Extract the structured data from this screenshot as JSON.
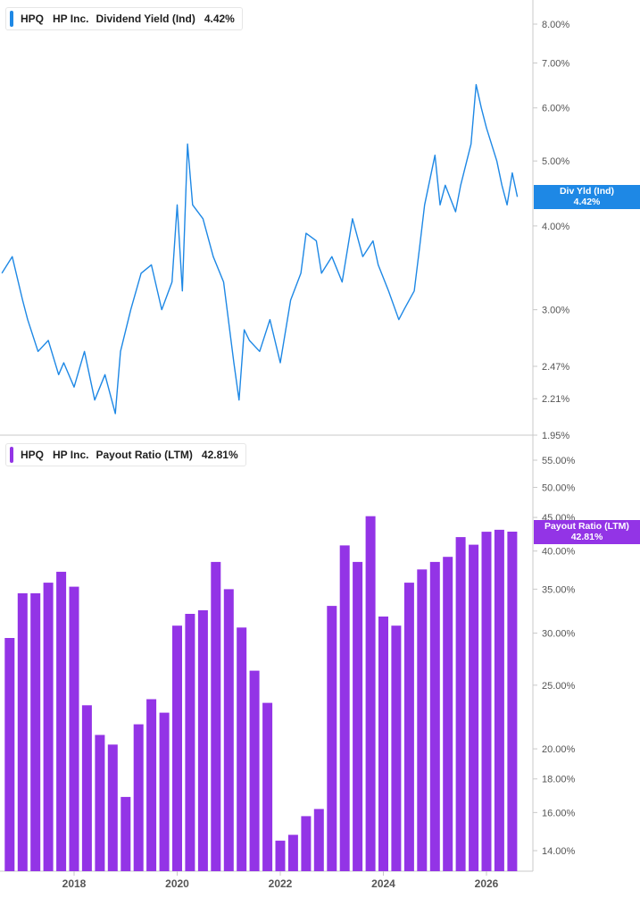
{
  "colors": {
    "yield": "#1e88e5",
    "payout": "#9334e6",
    "axis": "#c8c8c8",
    "text": "#555555"
  },
  "panels": [
    {
      "ticker": "HPQ",
      "company": "HP Inc.",
      "metric": "Dividend Yield (Ind)",
      "value": "4.42%",
      "tag_title": "Div Yld (Ind)",
      "tag_value": "4.42%"
    },
    {
      "ticker": "HPQ",
      "company": "HP Inc.",
      "metric": "Payout Ratio (LTM)",
      "value": "42.81%",
      "tag_title": "Payout Ratio (LTM)",
      "tag_value": "42.81%"
    }
  ],
  "chart_data": [
    {
      "type": "line",
      "title": "HPQ HP Inc. Dividend Yield (Ind) 4.42%",
      "y_scale": "log",
      "y_ticks": [
        "8.00%",
        "7.00%",
        "6.00%",
        "5.00%",
        "4.00%",
        "3.00%",
        "2.47%",
        "2.21%",
        "1.95%"
      ],
      "x_ticks": [
        "2018",
        "2020",
        "2022",
        "2024",
        "2026"
      ],
      "series": [
        {
          "name": "Div Yld (Ind)",
          "x": [
            2016.6,
            2016.8,
            2017.0,
            2017.1,
            2017.3,
            2017.5,
            2017.7,
            2017.8,
            2018.0,
            2018.2,
            2018.4,
            2018.6,
            2018.8,
            2018.9,
            2019.1,
            2019.3,
            2019.5,
            2019.7,
            2019.9,
            2020.0,
            2020.1,
            2020.2,
            2020.3,
            2020.5,
            2020.7,
            2020.9,
            2021.1,
            2021.2,
            2021.3,
            2021.4,
            2021.6,
            2021.8,
            2022.0,
            2022.2,
            2022.4,
            2022.5,
            2022.7,
            2022.8,
            2023.0,
            2023.2,
            2023.4,
            2023.6,
            2023.8,
            2023.9,
            2024.1,
            2024.3,
            2024.4,
            2024.6,
            2024.7,
            2024.8,
            2025.0,
            2025.1,
            2025.2,
            2025.4,
            2025.5,
            2025.7,
            2025.8,
            2025.9,
            2026.0,
            2026.2,
            2026.3,
            2026.4,
            2026.5,
            2026.6
          ],
          "values": [
            3.4,
            3.6,
            3.1,
            2.9,
            2.6,
            2.7,
            2.4,
            2.5,
            2.3,
            2.6,
            2.2,
            2.4,
            2.1,
            2.6,
            3.0,
            3.4,
            3.5,
            3.0,
            3.3,
            4.3,
            3.2,
            5.3,
            4.3,
            4.1,
            3.6,
            3.3,
            2.5,
            2.2,
            2.8,
            2.7,
            2.6,
            2.9,
            2.5,
            3.1,
            3.4,
            3.9,
            3.8,
            3.4,
            3.6,
            3.3,
            4.1,
            3.6,
            3.8,
            3.5,
            3.2,
            2.9,
            3.0,
            3.2,
            3.7,
            4.3,
            5.1,
            4.3,
            4.6,
            4.2,
            4.6,
            5.3,
            6.5,
            6.0,
            5.6,
            5.0,
            4.6,
            4.3,
            4.8,
            4.42
          ]
        }
      ]
    },
    {
      "type": "bar",
      "title": "HPQ HP Inc. Payout Ratio (LTM) 42.81%",
      "y_scale": "log",
      "y_ticks": [
        "55.00%",
        "50.00%",
        "45.00%",
        "40.00%",
        "35.00%",
        "30.00%",
        "25.00%",
        "20.00%",
        "18.00%",
        "16.00%",
        "14.00%"
      ],
      "x_ticks": [
        "2018",
        "2020",
        "2022",
        "2024",
        "2026"
      ],
      "series": [
        {
          "name": "Payout Ratio (LTM)",
          "x": [
            2016.75,
            2017.0,
            2017.25,
            2017.5,
            2017.75,
            2018.0,
            2018.25,
            2018.5,
            2018.75,
            2019.0,
            2019.25,
            2019.5,
            2019.75,
            2020.0,
            2020.25,
            2020.5,
            2020.75,
            2021.0,
            2021.25,
            2021.5,
            2021.75,
            2022.0,
            2022.25,
            2022.5,
            2022.75,
            2023.0,
            2023.25,
            2023.5,
            2023.75,
            2024.0,
            2024.25,
            2024.5,
            2024.75,
            2025.0,
            2025.25,
            2025.5,
            2025.75,
            2026.0,
            2026.25,
            2026.5
          ],
          "values": [
            29.5,
            34.5,
            34.5,
            35.8,
            37.2,
            35.3,
            23.3,
            21.0,
            20.3,
            16.9,
            21.8,
            23.8,
            22.7,
            30.8,
            32.1,
            32.5,
            38.5,
            35.0,
            30.6,
            26.3,
            23.5,
            14.5,
            14.8,
            15.8,
            16.2,
            33.0,
            40.8,
            38.5,
            45.2,
            31.8,
            30.8,
            35.8,
            37.5,
            38.5,
            39.2,
            42.0,
            40.9,
            42.8,
            43.1,
            42.81
          ]
        }
      ]
    }
  ]
}
